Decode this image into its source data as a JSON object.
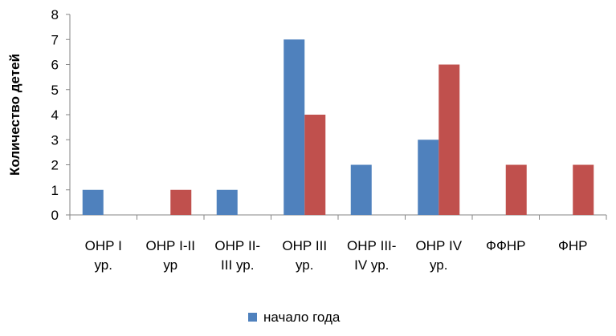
{
  "chart_data": {
    "type": "bar",
    "title": "",
    "xlabel": "",
    "ylabel": "Количество детей",
    "ylim": [
      0,
      8
    ],
    "yticks": [
      0,
      1,
      2,
      3,
      4,
      5,
      6,
      7,
      8
    ],
    "grid": false,
    "legend_position": "bottom",
    "categories": [
      [
        "ОНР I",
        "ур."
      ],
      [
        "ОНР I-II",
        "ур"
      ],
      [
        "ОНР II-",
        "III ур."
      ],
      [
        "ОНР III",
        "ур."
      ],
      [
        "ОНР III-",
        "IV ур."
      ],
      [
        "ОНР IV",
        "ур."
      ],
      [
        "ФФНР"
      ],
      [
        "ФНР"
      ]
    ],
    "series": [
      {
        "name": "начало года",
        "color": "#4F81BD",
        "values": [
          1,
          0,
          1,
          7,
          2,
          3,
          0,
          0
        ]
      },
      {
        "color": "#C0504D",
        "values": [
          0,
          1,
          0,
          4,
          0,
          6,
          2,
          2
        ]
      }
    ]
  }
}
